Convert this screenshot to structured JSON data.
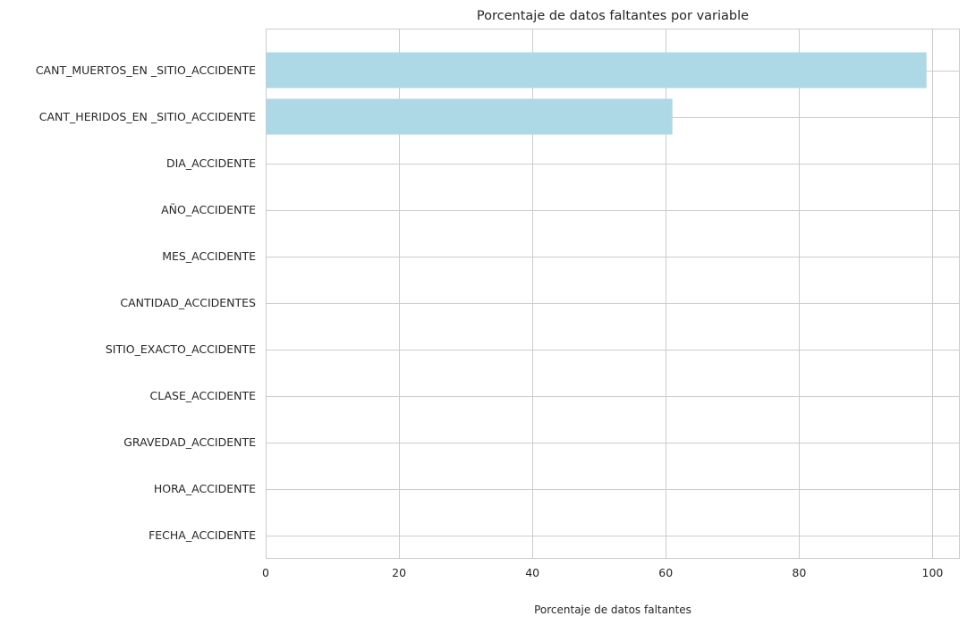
{
  "chart_data": {
    "type": "bar",
    "orientation": "horizontal",
    "title": "Porcentaje de datos faltantes por variable",
    "xlabel": "Porcentaje de datos faltantes",
    "ylabel": "",
    "categories": [
      "CANT_MUERTOS_EN _SITIO_ACCIDENTE",
      "CANT_HERIDOS_EN _SITIO_ACCIDENTE",
      "DIA_ACCIDENTE",
      "AÑO_ACCIDENTE",
      "MES_ACCIDENTE",
      "CANTIDAD_ACCIDENTES",
      "SITIO_EXACTO_ACCIDENTE",
      "CLASE_ACCIDENTE",
      "GRAVEDAD_ACCIDENTE",
      "HORA_ACCIDENTE",
      "FECHA_ACCIDENTE"
    ],
    "values": [
      99.1,
      61.0,
      0,
      0,
      0,
      0,
      0,
      0,
      0,
      0,
      0
    ],
    "xlim": [
      0,
      104.1
    ],
    "xticks": [
      0,
      20,
      40,
      60,
      80,
      100
    ],
    "xtick_labels": [
      "0",
      "20",
      "40",
      "60",
      "80",
      "100"
    ],
    "grid": true,
    "legend": "none",
    "bar_color": "#add8e6",
    "grid_color": "#cccccc",
    "text_color": "#262626"
  }
}
